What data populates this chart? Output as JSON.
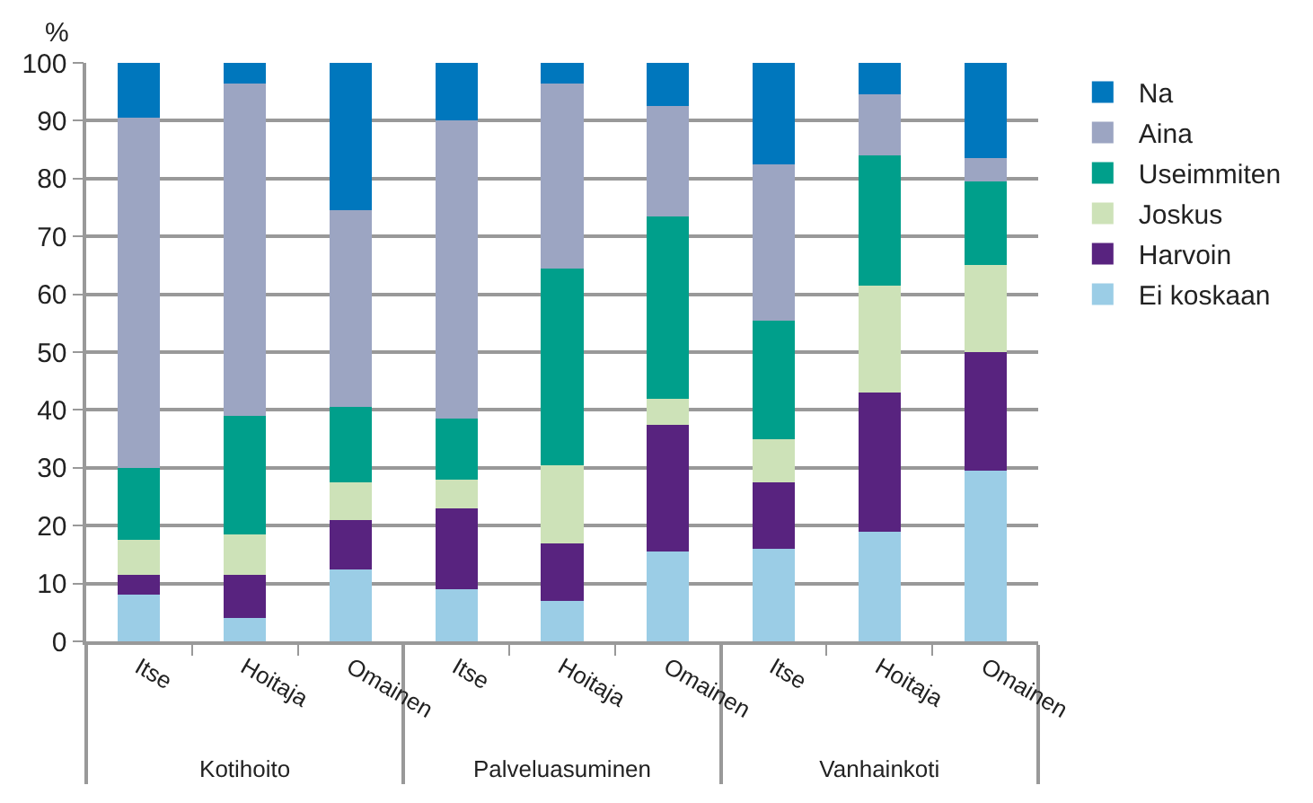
{
  "chart_data": {
    "type": "bar",
    "stacked": true,
    "ylabel": "%",
    "categories": [
      "Itse",
      "Hoitaja",
      "Omainen",
      "Itse",
      "Hoitaja",
      "Omainen",
      "Itse",
      "Hoitaja",
      "Omainen"
    ],
    "annotations": [
      "Kotihoito",
      "Palveluasuminen",
      "Vanhainkoti"
    ],
    "series": [
      {
        "name": "Ei koskaan",
        "color": "#9bcde6",
        "values": [
          8,
          4,
          12.5,
          9,
          7,
          15.5,
          16,
          19,
          29.5
        ]
      },
      {
        "name": "Harvoin",
        "color": "#58237f",
        "values": [
          3.5,
          7.5,
          8.5,
          14,
          10,
          22,
          11.5,
          24,
          20.5
        ]
      },
      {
        "name": "Joskus",
        "color": "#cde2b8",
        "values": [
          6,
          7,
          6.5,
          5,
          13.5,
          4.5,
          7.5,
          18.5,
          15
        ]
      },
      {
        "name": "Useimmiten",
        "color": "#009f8b",
        "values": [
          12.5,
          20.5,
          13,
          10.5,
          34,
          31.5,
          20.5,
          22.5,
          14.5
        ]
      },
      {
        "name": "Aina",
        "color": "#9ca5c2",
        "values": [
          60.5,
          57.5,
          34,
          51.5,
          32,
          19,
          27,
          10.5,
          4
        ]
      },
      {
        "name": "Na",
        "color": "#0077bd",
        "values": [
          9.5,
          3.5,
          25.5,
          10,
          3.5,
          7.5,
          17.5,
          5.5,
          16.5
        ]
      }
    ],
    "ylim": [
      0,
      100
    ],
    "yticks": [
      0,
      10,
      20,
      30,
      40,
      50,
      60,
      70,
      80,
      90,
      100
    ],
    "grid": "y",
    "legend": "right"
  }
}
